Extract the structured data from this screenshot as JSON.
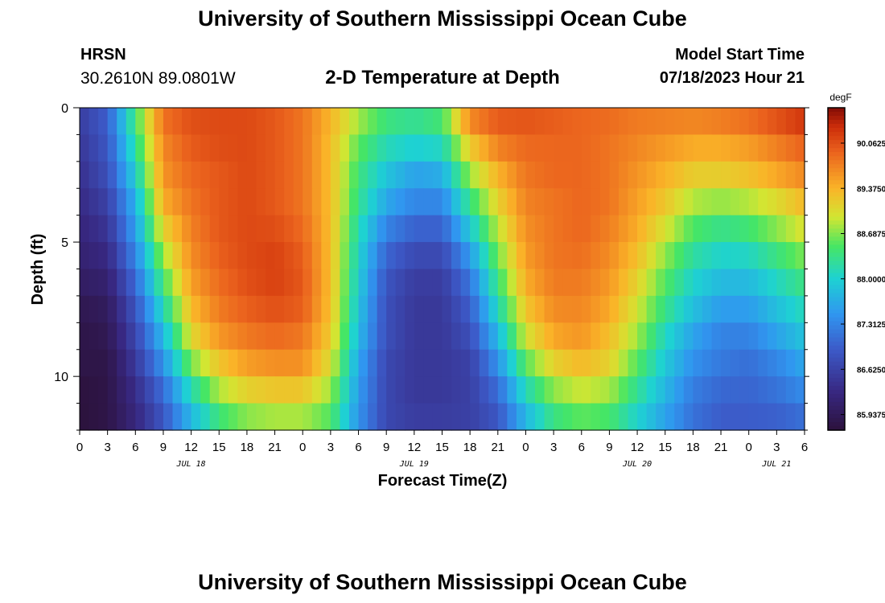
{
  "header": {
    "title": "University of Southern Mississippi Ocean Cube",
    "station": "HRSN",
    "coords": "30.2610N  89.0801W",
    "subtitle": "2-D Temperature at Depth",
    "start_label": "Model Start Time",
    "start_value": "07/18/2023 Hour 21"
  },
  "footer": {
    "title": "University of Southern Mississippi Ocean Cube"
  },
  "chart_data": {
    "type": "heatmap",
    "title": "2-D Temperature at Depth",
    "xlabel": "Forecast Time(Z)",
    "ylabel": "Depth (ft)",
    "x_unit": "hours from Jul 18 00Z",
    "x_range": [
      0,
      78
    ],
    "x_tick_step_hours": 3,
    "x_tick_labels": [
      "0",
      "3",
      "6",
      "9",
      "12",
      "15",
      "18",
      "21",
      "0",
      "3",
      "6",
      "9",
      "12",
      "15",
      "18",
      "21",
      "0",
      "3",
      "6",
      "9",
      "12",
      "15",
      "18",
      "21",
      "0",
      "3",
      "6"
    ],
    "date_labels": [
      {
        "label": "JUL 18",
        "hour": 12
      },
      {
        "label": "JUL 19",
        "hour": 36
      },
      {
        "label": "JUL 20",
        "hour": 60
      },
      {
        "label": "JUL 21",
        "hour": 75
      }
    ],
    "y_range": [
      0,
      12
    ],
    "y_ticks": [
      0,
      5,
      10
    ],
    "colorbar": {
      "unit": "degF",
      "min": 85.7,
      "max": 90.6,
      "tick_labels": [
        "85.9375",
        "86.6250",
        "87.3125",
        "88.0000",
        "88.6875",
        "89.3750",
        "90.0625"
      ]
    },
    "depth_levels_ft": [
      0.0,
      1.2,
      2.4,
      3.6,
      4.8,
      6.0,
      7.2,
      8.4,
      9.6,
      10.8,
      12.0
    ],
    "time_hours": [
      0,
      3,
      6,
      9,
      12,
      15,
      18,
      21,
      24,
      27,
      30,
      33,
      36,
      39,
      42,
      45,
      48,
      51,
      54,
      57,
      60,
      63,
      66,
      69,
      72,
      75,
      78
    ],
    "values_degF": [
      [
        86.6,
        87.0,
        88.5,
        89.9,
        90.1,
        90.1,
        90.1,
        90.0,
        89.8,
        89.4,
        88.9,
        88.5,
        88.4,
        88.6,
        89.9,
        90.1,
        90.1,
        90.0,
        89.9,
        89.9,
        89.8,
        89.8,
        89.8,
        89.9,
        90.0,
        90.2,
        90.4
      ],
      [
        86.5,
        86.9,
        88.3,
        89.7,
        90.0,
        90.1,
        90.1,
        90.0,
        89.8,
        89.3,
        88.6,
        88.2,
        88.1,
        88.2,
        89.3,
        89.8,
        89.9,
        89.9,
        89.9,
        89.8,
        89.7,
        89.6,
        89.5,
        89.5,
        89.6,
        89.8,
        90.0
      ],
      [
        86.4,
        86.8,
        88.0,
        89.6,
        89.9,
        90.0,
        90.1,
        90.0,
        89.8,
        89.3,
        88.4,
        87.9,
        87.6,
        87.7,
        88.8,
        89.4,
        89.8,
        89.9,
        89.9,
        89.8,
        89.6,
        89.4,
        89.2,
        89.2,
        89.3,
        89.5,
        89.7
      ],
      [
        86.3,
        86.6,
        87.7,
        89.4,
        89.8,
        90.0,
        90.1,
        90.0,
        89.8,
        89.3,
        88.3,
        87.6,
        87.3,
        87.3,
        88.3,
        89.1,
        89.7,
        89.8,
        89.9,
        89.8,
        89.5,
        89.2,
        88.8,
        88.7,
        88.8,
        89.0,
        89.3
      ],
      [
        86.2,
        86.4,
        87.5,
        89.0,
        89.7,
        90.0,
        90.1,
        90.1,
        89.9,
        89.3,
        88.1,
        87.2,
        86.9,
        86.9,
        87.8,
        88.8,
        89.6,
        89.8,
        89.9,
        89.7,
        89.4,
        88.9,
        88.4,
        88.2,
        88.3,
        88.6,
        88.9
      ],
      [
        86.1,
        86.2,
        87.2,
        88.6,
        89.6,
        89.9,
        90.1,
        90.2,
        90.0,
        89.3,
        88.0,
        86.9,
        86.6,
        86.6,
        87.3,
        88.5,
        89.5,
        89.8,
        89.8,
        89.6,
        89.2,
        88.6,
        88.1,
        87.9,
        87.9,
        88.2,
        88.5
      ],
      [
        85.9,
        86.0,
        86.9,
        88.2,
        89.4,
        89.8,
        90.0,
        90.1,
        90.0,
        89.3,
        87.9,
        86.8,
        86.5,
        86.5,
        87.0,
        88.2,
        89.3,
        89.7,
        89.7,
        89.5,
        89.0,
        88.4,
        87.9,
        87.6,
        87.6,
        87.9,
        88.2
      ],
      [
        85.8,
        85.9,
        86.7,
        87.8,
        89.1,
        89.6,
        89.8,
        89.9,
        89.8,
        89.2,
        87.8,
        86.8,
        86.5,
        86.5,
        86.8,
        87.8,
        89.0,
        89.5,
        89.6,
        89.3,
        88.8,
        88.1,
        87.6,
        87.3,
        87.3,
        87.6,
        87.9
      ],
      [
        85.8,
        85.8,
        86.5,
        87.4,
        88.6,
        89.2,
        89.5,
        89.6,
        89.6,
        89.0,
        87.6,
        86.7,
        86.5,
        86.5,
        86.6,
        87.4,
        88.5,
        89.1,
        89.3,
        89.1,
        88.5,
        87.9,
        87.4,
        87.2,
        87.1,
        87.3,
        87.6
      ],
      [
        85.7,
        85.8,
        86.3,
        87.0,
        88.0,
        88.7,
        89.0,
        89.1,
        89.1,
        88.7,
        87.5,
        86.7,
        86.5,
        86.5,
        86.6,
        87.0,
        88.0,
        88.6,
        88.8,
        88.7,
        88.2,
        87.7,
        87.2,
        87.0,
        87.0,
        87.1,
        87.3
      ],
      [
        85.7,
        85.8,
        86.2,
        86.8,
        87.6,
        88.2,
        88.5,
        88.6,
        88.6,
        88.4,
        87.4,
        86.7,
        86.6,
        86.6,
        86.6,
        86.8,
        87.6,
        88.2,
        88.4,
        88.3,
        87.9,
        87.5,
        87.1,
        86.9,
        86.9,
        86.9,
        87.0
      ]
    ]
  }
}
